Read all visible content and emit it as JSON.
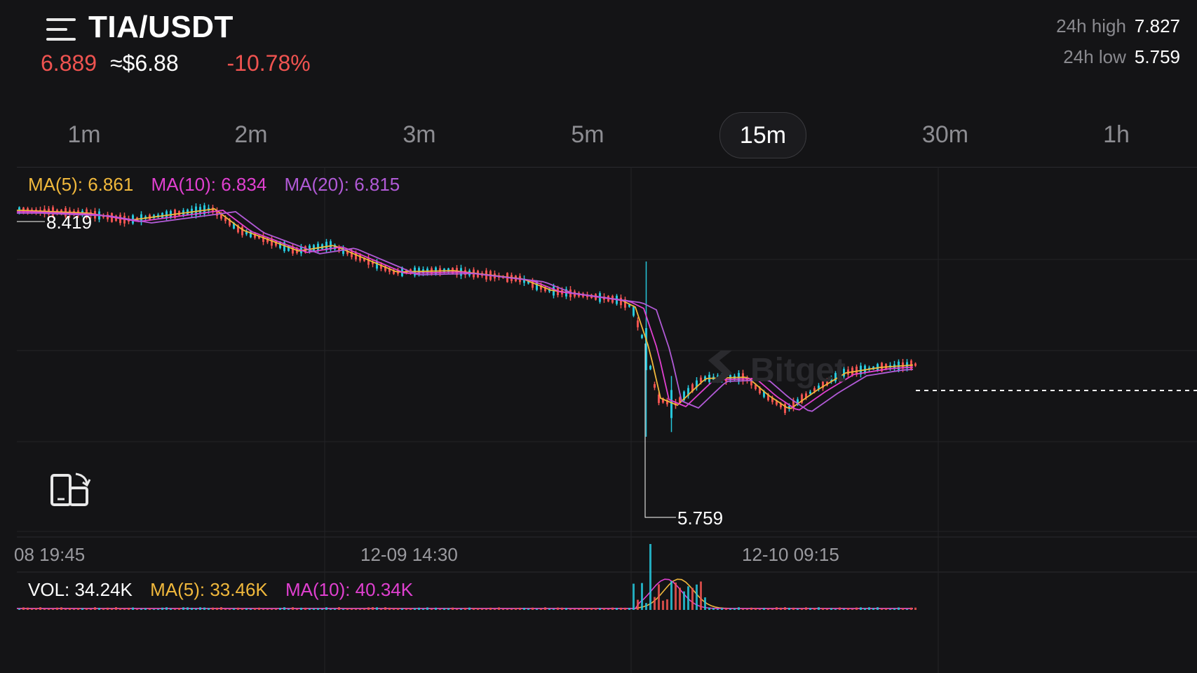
{
  "header": {
    "pair": "TIA/USDT",
    "price": "6.889",
    "usd_price": "≈$6.88",
    "change": "-10.78%",
    "high_label": "24h high",
    "high_value": "7.827",
    "low_label": "24h low",
    "low_value": "5.759"
  },
  "tabs": [
    {
      "label": "1m",
      "active": false
    },
    {
      "label": "2m",
      "active": false
    },
    {
      "label": "3m",
      "active": false
    },
    {
      "label": "5m",
      "active": false
    },
    {
      "label": "15m",
      "active": true
    },
    {
      "label": "30m",
      "active": false
    },
    {
      "label": "1h",
      "active": false
    }
  ],
  "ma_legend": {
    "ma5": "MA(5): 6.861",
    "ma10": "MA(10): 6.834",
    "ma20": "MA(20): 6.815"
  },
  "vol_legend": {
    "vol": "VOL: 34.24K",
    "ma5": "MA(5): 33.46K",
    "ma10": "MA(10): 40.34K"
  },
  "chart": {
    "high_marker": "8.419",
    "low_marker": "5.759",
    "time_labels": [
      "08 19:45",
      "12-09 14:30",
      "12-10 09:15"
    ],
    "watermark": "Bitget"
  },
  "colors": {
    "up": "#26c6da",
    "down": "#ef5350",
    "ma5": "#f0b83c",
    "ma10": "#e040d0",
    "ma20": "#b15ad6",
    "text_muted": "#8d8d92"
  },
  "icons": {
    "menu": "menu-icon",
    "rotate": "rotate-screen-icon"
  }
}
